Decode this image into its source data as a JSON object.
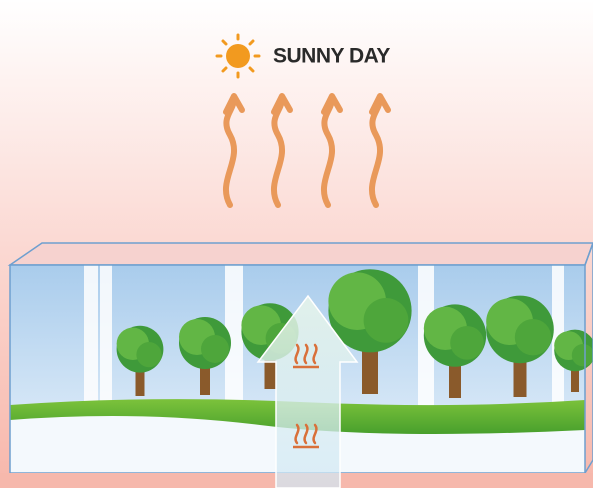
{
  "label": "SUNNY DAY"
}
